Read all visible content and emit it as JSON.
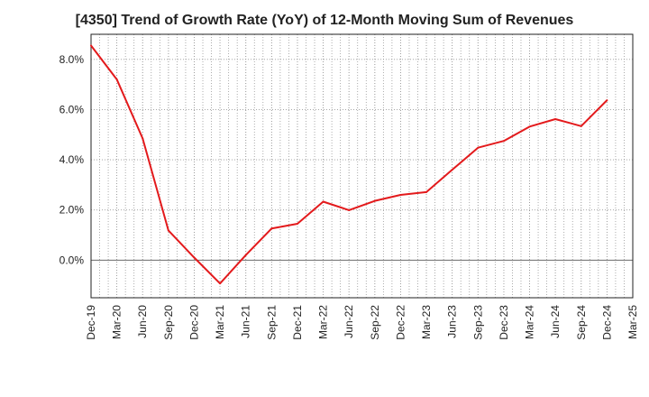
{
  "chart_data": {
    "type": "line",
    "title": "[4350]  Trend of Growth Rate (YoY) of 12-Month Moving Sum of Revenues",
    "xlabel": "",
    "ylabel": "",
    "x_tick_labels": [
      "Dec-19",
      "Mar-20",
      "Jun-20",
      "Sep-20",
      "Dec-20",
      "Mar-21",
      "Jun-21",
      "Sep-21",
      "Dec-21",
      "Mar-22",
      "Jun-22",
      "Sep-22",
      "Dec-22",
      "Mar-23",
      "Jun-23",
      "Sep-23",
      "Dec-23",
      "Mar-24",
      "Jun-24",
      "Sep-24",
      "Dec-24",
      "Mar-25"
    ],
    "y_tick_labels": [
      "0.0%",
      "2.0%",
      "4.0%",
      "6.0%",
      "8.0%"
    ],
    "y_ticks": [
      0,
      2,
      4,
      6,
      8
    ],
    "ylim": [
      -1.5,
      9.0
    ],
    "grid": true,
    "series": [
      {
        "color": "#e31a1c",
        "x": [
          "Dec-19",
          "Mar-20",
          "Jun-20",
          "Sep-20",
          "Dec-20",
          "Mar-21",
          "Jun-21",
          "Sep-21",
          "Dec-21",
          "Mar-22",
          "Jun-22",
          "Sep-22",
          "Dec-22",
          "Mar-23",
          "Jun-23",
          "Sep-23",
          "Dec-23",
          "Mar-24",
          "Jun-24",
          "Sep-24",
          "Dec-24"
        ],
        "values": [
          8.55,
          7.2,
          4.85,
          1.18,
          0.1,
          -0.93,
          0.2,
          1.26,
          1.45,
          2.33,
          1.99,
          2.36,
          2.6,
          2.71,
          3.6,
          4.48,
          4.75,
          5.32,
          5.62,
          5.34,
          6.37
        ]
      }
    ]
  }
}
